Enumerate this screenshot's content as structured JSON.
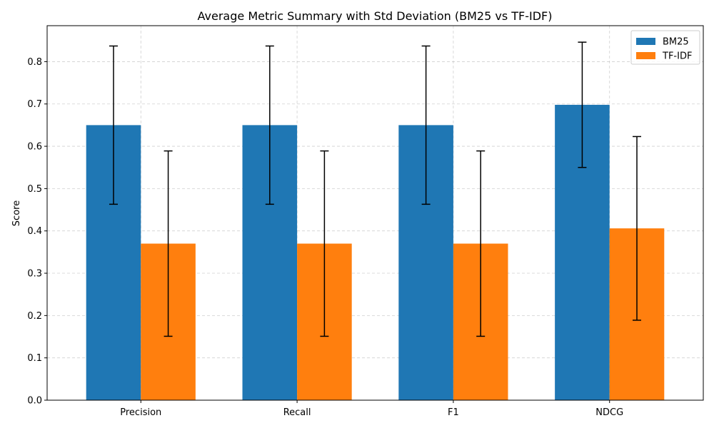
{
  "chart_data": {
    "type": "bar",
    "title": "Average Metric Summary with Std Deviation (BM25 vs TF-IDF)",
    "xlabel": "",
    "ylabel": "Score",
    "ylim": [
      0,
      0.885
    ],
    "yticks": [
      0.0,
      0.1,
      0.2,
      0.3,
      0.4,
      0.5,
      0.6,
      0.7,
      0.8
    ],
    "grid": true,
    "legend_placement": "top-right",
    "categories": [
      "Precision",
      "Recall",
      "F1",
      "NDCG"
    ],
    "series": [
      {
        "name": "BM25",
        "color": "#1f77b4",
        "values": [
          0.65,
          0.65,
          0.65,
          0.698
        ],
        "std": [
          0.187,
          0.187,
          0.187,
          0.148
        ]
      },
      {
        "name": "TF-IDF",
        "color": "#ff7f0e",
        "values": [
          0.37,
          0.37,
          0.37,
          0.406
        ],
        "std": [
          0.219,
          0.219,
          0.219,
          0.217
        ]
      }
    ]
  }
}
